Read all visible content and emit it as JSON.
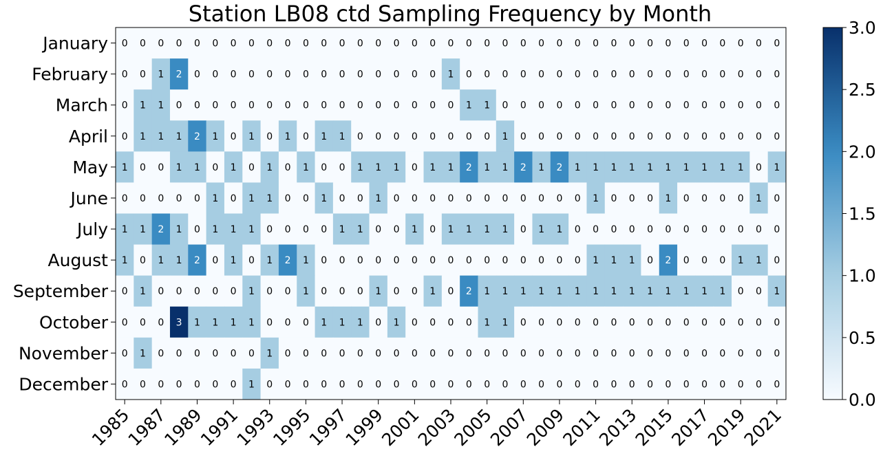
{
  "chart_data": {
    "type": "heatmap",
    "title": "Station LB08 ctd Sampling Frequency by Month",
    "x": [
      1985,
      1986,
      1987,
      1988,
      1989,
      1990,
      1991,
      1992,
      1993,
      1994,
      1995,
      1996,
      1997,
      1998,
      1999,
      2000,
      2001,
      2002,
      2003,
      2004,
      2005,
      2006,
      2007,
      2008,
      2009,
      2010,
      2011,
      2012,
      2013,
      2014,
      2015,
      2016,
      2017,
      2018,
      2019,
      2020,
      2021
    ],
    "x_tick_labels": [
      "1985",
      "1987",
      "1989",
      "1991",
      "1993",
      "1995",
      "1997",
      "1999",
      "2001",
      "2003",
      "2005",
      "2007",
      "2009",
      "2011",
      "2013",
      "2015",
      "2017",
      "2019",
      "2021"
    ],
    "y_labels": [
      "January",
      "February",
      "March",
      "April",
      "May",
      "June",
      "July",
      "August",
      "September",
      "October",
      "November",
      "December"
    ],
    "values": [
      [
        0,
        0,
        0,
        0,
        0,
        0,
        0,
        0,
        0,
        0,
        0,
        0,
        0,
        0,
        0,
        0,
        0,
        0,
        0,
        0,
        0,
        0,
        0,
        0,
        0,
        0,
        0,
        0,
        0,
        0,
        0,
        0,
        0,
        0,
        0,
        0,
        0
      ],
      [
        0,
        0,
        1,
        2,
        0,
        0,
        0,
        0,
        0,
        0,
        0,
        0,
        0,
        0,
        0,
        0,
        0,
        0,
        1,
        0,
        0,
        0,
        0,
        0,
        0,
        0,
        0,
        0,
        0,
        0,
        0,
        0,
        0,
        0,
        0,
        0,
        0
      ],
      [
        0,
        1,
        1,
        0,
        0,
        0,
        0,
        0,
        0,
        0,
        0,
        0,
        0,
        0,
        0,
        0,
        0,
        0,
        0,
        1,
        1,
        0,
        0,
        0,
        0,
        0,
        0,
        0,
        0,
        0,
        0,
        0,
        0,
        0,
        0,
        0,
        0
      ],
      [
        0,
        1,
        1,
        1,
        2,
        1,
        0,
        1,
        0,
        1,
        0,
        1,
        1,
        0,
        0,
        0,
        0,
        0,
        0,
        0,
        0,
        1,
        0,
        0,
        0,
        0,
        0,
        0,
        0,
        0,
        0,
        0,
        0,
        0,
        0,
        0,
        0
      ],
      [
        1,
        0,
        0,
        1,
        1,
        0,
        1,
        0,
        1,
        0,
        1,
        0,
        0,
        1,
        1,
        1,
        0,
        1,
        1,
        2,
        1,
        1,
        2,
        1,
        2,
        1,
        1,
        1,
        1,
        1,
        1,
        1,
        1,
        1,
        1,
        0,
        1
      ],
      [
        0,
        0,
        0,
        0,
        0,
        1,
        0,
        1,
        1,
        0,
        0,
        1,
        0,
        0,
        1,
        0,
        0,
        0,
        0,
        0,
        0,
        0,
        0,
        0,
        0,
        0,
        1,
        0,
        0,
        0,
        1,
        0,
        0,
        0,
        0,
        1,
        0
      ],
      [
        1,
        1,
        2,
        1,
        0,
        1,
        1,
        1,
        0,
        0,
        0,
        0,
        1,
        1,
        0,
        0,
        1,
        0,
        1,
        1,
        1,
        1,
        0,
        1,
        1,
        0,
        0,
        0,
        0,
        0,
        0,
        0,
        0,
        0,
        0,
        0,
        0
      ],
      [
        1,
        0,
        1,
        1,
        2,
        0,
        1,
        0,
        1,
        2,
        1,
        0,
        0,
        0,
        0,
        0,
        0,
        0,
        0,
        0,
        0,
        0,
        0,
        0,
        0,
        0,
        1,
        1,
        1,
        0,
        2,
        0,
        0,
        0,
        1,
        1,
        0
      ],
      [
        0,
        1,
        0,
        0,
        0,
        0,
        0,
        1,
        0,
        0,
        1,
        0,
        0,
        0,
        1,
        0,
        0,
        1,
        0,
        2,
        1,
        1,
        1,
        1,
        1,
        1,
        1,
        1,
        1,
        1,
        1,
        1,
        1,
        1,
        0,
        0,
        1
      ],
      [
        0,
        0,
        0,
        3,
        1,
        1,
        1,
        1,
        0,
        0,
        0,
        1,
        1,
        1,
        0,
        1,
        0,
        0,
        0,
        0,
        1,
        1,
        0,
        0,
        0,
        0,
        0,
        0,
        0,
        0,
        0,
        0,
        0,
        0,
        0,
        0,
        0
      ],
      [
        0,
        1,
        0,
        0,
        0,
        0,
        0,
        0,
        1,
        0,
        0,
        0,
        0,
        0,
        0,
        0,
        0,
        0,
        0,
        0,
        0,
        0,
        0,
        0,
        0,
        0,
        0,
        0,
        0,
        0,
        0,
        0,
        0,
        0,
        0,
        0,
        0
      ],
      [
        0,
        0,
        0,
        0,
        0,
        0,
        0,
        1,
        0,
        0,
        0,
        0,
        0,
        0,
        0,
        0,
        0,
        0,
        0,
        0,
        0,
        0,
        0,
        0,
        0,
        0,
        0,
        0,
        0,
        0,
        0,
        0,
        0,
        0,
        0,
        0,
        0
      ]
    ],
    "colormap": "Blues",
    "vmin": 0,
    "vmax": 3,
    "colorbar_ticks": [
      "0.0",
      "0.5",
      "1.0",
      "1.5",
      "2.0",
      "2.5",
      "3.0"
    ],
    "colors": {
      "low": "#f7fbff",
      "mid": "#a6cde2",
      "midhigh": "#3a8bc2",
      "high": "#08306b"
    }
  }
}
